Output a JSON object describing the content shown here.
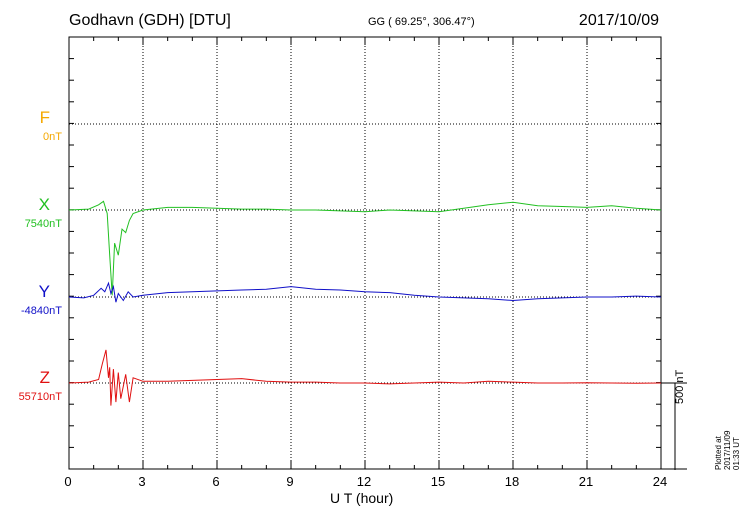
{
  "header": {
    "station": "Godhavn (GDH)  [DTU]",
    "coords": "GG ( 69.25°, 306.47°)",
    "date": "2017/10/09"
  },
  "components": [
    {
      "id": "F",
      "label": "F",
      "baseline": "0nT",
      "color": "#f5a800"
    },
    {
      "id": "X",
      "label": "X",
      "baseline": "7540nT",
      "color": "#22c022"
    },
    {
      "id": "Y",
      "label": "Y",
      "baseline": "-4840nT",
      "color": "#1010c8"
    },
    {
      "id": "Z",
      "label": "Z",
      "baseline": "55710nT",
      "color": "#e01010"
    }
  ],
  "scale_label": "500 nT",
  "plotted_note": "Plotted at 2017/11/09 01:33 UT",
  "chart_data": {
    "type": "line",
    "xlabel": "U T (hour)",
    "xlim": [
      0,
      24
    ],
    "x_ticks": [
      "0",
      "3",
      "6",
      "9",
      "12",
      "15",
      "18",
      "21",
      "24"
    ],
    "grid": true,
    "series": [
      {
        "name": "X",
        "unit": "nT",
        "baseline": 7540,
        "x": [
          0,
          0.8,
          1.2,
          1.4,
          1.55,
          1.65,
          1.75,
          1.85,
          2.0,
          2.15,
          2.3,
          2.45,
          2.6,
          3,
          4,
          5,
          6,
          7,
          8,
          9,
          10,
          11,
          12,
          13,
          14,
          15,
          16,
          17,
          18,
          19,
          20,
          21,
          22,
          23,
          24
        ],
        "values": [
          7540,
          7545,
          7570,
          7590,
          7520,
          7280,
          7050,
          7350,
          7280,
          7430,
          7410,
          7480,
          7520,
          7540,
          7555,
          7555,
          7550,
          7545,
          7545,
          7540,
          7540,
          7535,
          7530,
          7540,
          7535,
          7530,
          7550,
          7570,
          7585,
          7565,
          7560,
          7555,
          7565,
          7550,
          7540
        ]
      },
      {
        "name": "Y",
        "unit": "nT",
        "baseline": -4840,
        "x": [
          0,
          0.6,
          1.0,
          1.3,
          1.45,
          1.6,
          1.7,
          1.8,
          1.9,
          2.0,
          2.2,
          2.4,
          2.6,
          3,
          4,
          5,
          6,
          7,
          8,
          9,
          10,
          11,
          12,
          13,
          14,
          15,
          16,
          17,
          18,
          19,
          20,
          21,
          22,
          23,
          24
        ],
        "values": [
          -4840,
          -4845,
          -4830,
          -4790,
          -4810,
          -4760,
          -4820,
          -4780,
          -4870,
          -4820,
          -4860,
          -4810,
          -4840,
          -4830,
          -4815,
          -4810,
          -4805,
          -4800,
          -4795,
          -4780,
          -4795,
          -4800,
          -4810,
          -4815,
          -4830,
          -4840,
          -4845,
          -4850,
          -4860,
          -4850,
          -4845,
          -4840,
          -4840,
          -4835,
          -4840
        ]
      },
      {
        "name": "Z",
        "unit": "nT",
        "baseline": 55710,
        "x": [
          0,
          0.8,
          1.2,
          1.35,
          1.5,
          1.6,
          1.65,
          1.7,
          1.8,
          1.9,
          2.0,
          2.1,
          2.3,
          2.45,
          2.6,
          3,
          4,
          5,
          6,
          7,
          8,
          9,
          10,
          11,
          12,
          13,
          14,
          15,
          16,
          17,
          18,
          19,
          20,
          21,
          22,
          23,
          24
        ],
        "values": [
          55710,
          55715,
          55730,
          55820,
          55900,
          55740,
          55800,
          55580,
          55790,
          55600,
          55770,
          55620,
          55760,
          55600,
          55740,
          55720,
          55720,
          55725,
          55730,
          55735,
          55720,
          55715,
          55715,
          55710,
          55710,
          55705,
          55710,
          55715,
          55710,
          55720,
          55715,
          55710,
          55710,
          55712,
          55710,
          55708,
          55710
        ]
      }
    ],
    "scale_nT": 500
  }
}
